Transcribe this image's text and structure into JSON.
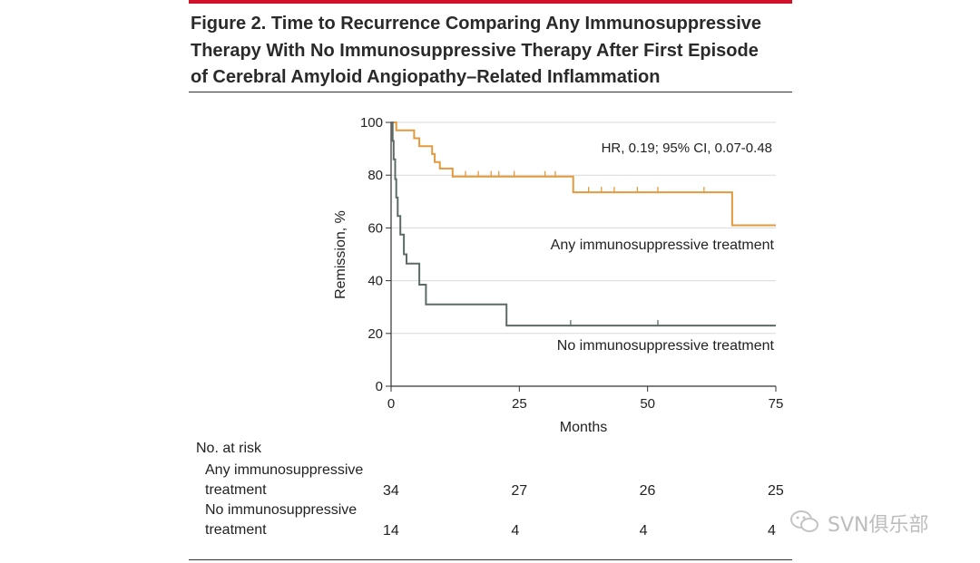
{
  "figure": {
    "title_lines": [
      "Figure 2. Time to Recurrence Comparing Any Immunosuppressive",
      "Therapy With No Immunosuppressive Therapy After First Episode",
      "of Cerebral Amyloid Angiopathy–Related Inflammation"
    ]
  },
  "chart_data": {
    "type": "line",
    "subtype": "kaplan-meier",
    "xlabel": "Months",
    "ylabel": "Remission, %",
    "xlim": [
      0,
      75
    ],
    "ylim": [
      0,
      100
    ],
    "xticks": [
      0,
      25,
      50,
      75
    ],
    "yticks": [
      0,
      20,
      40,
      60,
      80,
      100
    ],
    "grid": "horizontal",
    "annotation": "HR, 0.19; 95% CI, 0.07-0.48",
    "series": [
      {
        "name": "Any immunosuppressive treatment",
        "color": "#e39a3f",
        "steps": [
          [
            0,
            100
          ],
          [
            1,
            100
          ],
          [
            1,
            97
          ],
          [
            4.5,
            97
          ],
          [
            4.5,
            94
          ],
          [
            5.5,
            94
          ],
          [
            5.5,
            91
          ],
          [
            8,
            91
          ],
          [
            8,
            88
          ],
          [
            8.5,
            88
          ],
          [
            8.5,
            85
          ],
          [
            9.5,
            85
          ],
          [
            9.5,
            82.5
          ],
          [
            12,
            82.5
          ],
          [
            12,
            79.5
          ],
          [
            35.5,
            79.5
          ],
          [
            35.5,
            73.5
          ],
          [
            66.5,
            73.5
          ],
          [
            66.5,
            61
          ],
          [
            75,
            61
          ]
        ],
        "censor_marks": [
          [
            12,
            79.5
          ],
          [
            14.5,
            79.5
          ],
          [
            17,
            79.5
          ],
          [
            19.5,
            79.5
          ],
          [
            21,
            79.5
          ],
          [
            24,
            79.5
          ],
          [
            30,
            79.5
          ],
          [
            32,
            79.5
          ],
          [
            38.5,
            73.5
          ],
          [
            41,
            73.5
          ],
          [
            43.5,
            73.5
          ],
          [
            48,
            73.5
          ],
          [
            52,
            73.5
          ],
          [
            61,
            73.5
          ]
        ]
      },
      {
        "name": "No immunosuppressive treatment",
        "color": "#5d6b68",
        "steps": [
          [
            0,
            100
          ],
          [
            0.3,
            100
          ],
          [
            0.3,
            93
          ],
          [
            0.5,
            93
          ],
          [
            0.5,
            86
          ],
          [
            0.8,
            86
          ],
          [
            0.8,
            78.5
          ],
          [
            1,
            78.5
          ],
          [
            1,
            71.5
          ],
          [
            1.3,
            71.5
          ],
          [
            1.3,
            64.5
          ],
          [
            1.8,
            64.5
          ],
          [
            1.8,
            57.5
          ],
          [
            2.5,
            57.5
          ],
          [
            2.5,
            50
          ],
          [
            3,
            50
          ],
          [
            3,
            46.5
          ],
          [
            5.5,
            46.5
          ],
          [
            5.5,
            38.5
          ],
          [
            6.8,
            38.5
          ],
          [
            6.8,
            31
          ],
          [
            22.5,
            31
          ],
          [
            22.5,
            23
          ],
          [
            75,
            23
          ]
        ],
        "censor_marks": [
          [
            35,
            23
          ],
          [
            52,
            23
          ]
        ]
      }
    ],
    "number_at_risk": {
      "header": "No. at risk",
      "times": [
        0,
        25,
        50,
        75
      ],
      "groups": [
        {
          "label_lines": [
            "Any immunosuppressive",
            "treatment"
          ],
          "values": [
            34,
            27,
            26,
            25
          ]
        },
        {
          "label_lines": [
            "No immunosuppressive",
            "treatment"
          ],
          "values": [
            14,
            4,
            4,
            4
          ]
        }
      ]
    }
  },
  "watermark": {
    "text": "SVN俱乐部"
  }
}
